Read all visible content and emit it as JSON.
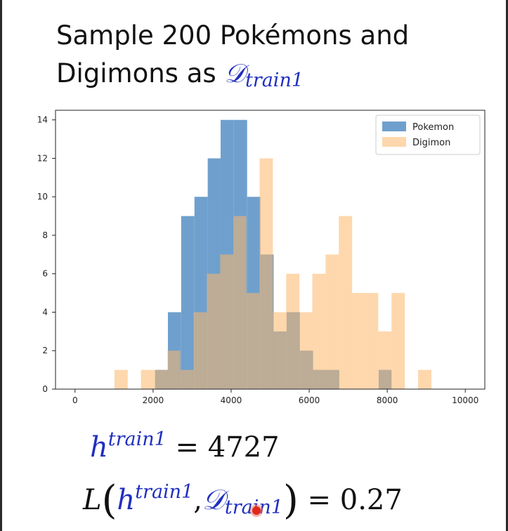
{
  "slide": {
    "title_line1": "Sample 200 Pokémons and",
    "title_line2_prefix": "Digimons as ",
    "dataset_symbol": "𝒟",
    "dataset_subscript": "train1",
    "eq1_h": "h",
    "eq1_sup": "train1",
    "eq1_rhs": "= 4727",
    "eq2_L": "L",
    "eq2_lparen": "(",
    "eq2_h": "h",
    "eq2_sup": "train1",
    "eq2_comma": ",",
    "eq2_D": "𝒟",
    "eq2_sub": "train1",
    "eq2_rparen": ")",
    "eq2_rhs": "= 0.27",
    "accent_color": "#1f2fbf"
  },
  "chart_data": {
    "type": "histogram",
    "xlim": [
      -500,
      10500
    ],
    "ylim": [
      0,
      14.5
    ],
    "xticks": [
      0,
      2000,
      4000,
      6000,
      8000,
      10000
    ],
    "yticks": [
      0,
      2,
      4,
      6,
      8,
      10,
      12,
      14
    ],
    "legend_position": "top-right",
    "grid": false,
    "series": [
      {
        "name": "Pokemon",
        "color": "#6fa0cd",
        "bins": [
          [
            2050,
            2380,
            1
          ],
          [
            2380,
            2720,
            4
          ],
          [
            2720,
            3060,
            9
          ],
          [
            3060,
            3400,
            10
          ],
          [
            3400,
            3730,
            12
          ],
          [
            3730,
            4070,
            14
          ],
          [
            4070,
            4410,
            14
          ],
          [
            4410,
            4750,
            10
          ],
          [
            4750,
            5090,
            7
          ],
          [
            5090,
            5420,
            3
          ],
          [
            5420,
            5760,
            4
          ],
          [
            5760,
            6100,
            2
          ],
          [
            6100,
            6440,
            1
          ],
          [
            6440,
            6770,
            1
          ],
          [
            7780,
            8110,
            1
          ]
        ]
      },
      {
        "name": "Digimon",
        "color": "#fdb66a",
        "bins": [
          [
            1010,
            1350,
            1
          ],
          [
            1690,
            2030,
            1
          ],
          [
            2030,
            2370,
            1
          ],
          [
            2370,
            2700,
            2
          ],
          [
            2700,
            3040,
            1
          ],
          [
            3040,
            3380,
            4
          ],
          [
            3380,
            3720,
            6
          ],
          [
            3720,
            4060,
            7
          ],
          [
            4060,
            4390,
            9
          ],
          [
            4390,
            4730,
            5
          ],
          [
            4730,
            5070,
            12
          ],
          [
            5070,
            5410,
            4
          ],
          [
            5410,
            5750,
            6
          ],
          [
            5750,
            6080,
            4
          ],
          [
            6080,
            6420,
            6
          ],
          [
            6420,
            6760,
            7
          ],
          [
            6760,
            7100,
            9
          ],
          [
            7100,
            7440,
            5
          ],
          [
            7440,
            7770,
            5
          ],
          [
            7770,
            8110,
            3
          ],
          [
            8110,
            8450,
            5
          ],
          [
            8790,
            9130,
            1
          ]
        ]
      }
    ]
  }
}
